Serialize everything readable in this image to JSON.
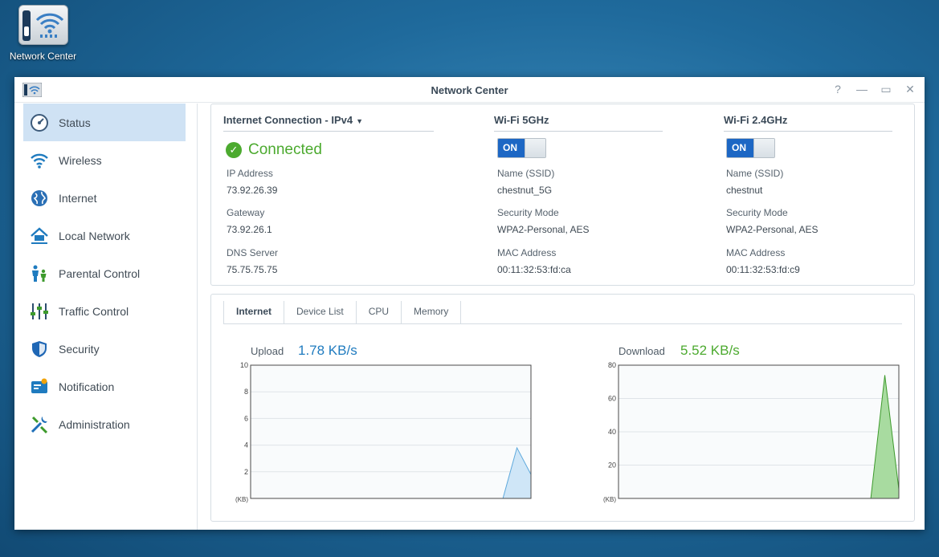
{
  "desktop": {
    "icon_label": "Network Center"
  },
  "window": {
    "title": "Network Center",
    "controls": {
      "help": "?",
      "minimize": "—",
      "maximize": "▭",
      "close": "✕"
    }
  },
  "sidebar": {
    "items": [
      {
        "label": "Status",
        "icon": "status-gauge-icon",
        "active": true
      },
      {
        "label": "Wireless",
        "icon": "wireless-icon"
      },
      {
        "label": "Internet",
        "icon": "globe-icon"
      },
      {
        "label": "Local Network",
        "icon": "home-network-icon"
      },
      {
        "label": "Parental Control",
        "icon": "family-icon"
      },
      {
        "label": "Traffic Control",
        "icon": "sliders-icon"
      },
      {
        "label": "Security",
        "icon": "shield-icon"
      },
      {
        "label": "Notification",
        "icon": "notification-icon"
      },
      {
        "label": "Administration",
        "icon": "tools-icon"
      }
    ]
  },
  "internet": {
    "heading": "Internet Connection - IPv4",
    "status": "Connected",
    "status_color": "#4caa2f",
    "ip_label": "IP Address",
    "ip": "73.92.26.39",
    "gateway_label": "Gateway",
    "gateway": "73.92.26.1",
    "dns_label": "DNS Server",
    "dns": "75.75.75.75"
  },
  "wifi5": {
    "heading": "Wi-Fi 5GHz",
    "toggle": "ON",
    "ssid_label": "Name (SSID)",
    "ssid": "chestnut_5G",
    "security_label": "Security Mode",
    "security": "WPA2-Personal, AES",
    "mac_label": "MAC Address",
    "mac": "00:11:32:53:fd:ca"
  },
  "wifi24": {
    "heading": "Wi-Fi 2.4GHz",
    "toggle": "ON",
    "ssid_label": "Name (SSID)",
    "ssid": "chestnut",
    "security_label": "Security Mode",
    "security": "WPA2-Personal, AES",
    "mac_label": "MAC Address",
    "mac": "00:11:32:53:fd:c9"
  },
  "tabs": [
    "Internet",
    "Device List",
    "CPU",
    "Memory"
  ],
  "upload": {
    "label": "Upload",
    "value": "1.78 KB/s",
    "color": "#1f7bbf"
  },
  "download": {
    "label": "Download",
    "value": "5.52 KB/s",
    "color": "#4caa2f"
  },
  "chart_data": [
    {
      "type": "area",
      "name": "Upload",
      "ylabel": "(KB)",
      "ylim": [
        0,
        10
      ],
      "yticks": [
        2,
        4,
        6,
        8,
        10
      ],
      "values": [
        0,
        0,
        0,
        0,
        0,
        0,
        0,
        0,
        0,
        0,
        0,
        0,
        0,
        0,
        0,
        0,
        0,
        0,
        0,
        3.8,
        1.8
      ],
      "stroke": "#5ea9dc",
      "fill": "#cfe6f7"
    },
    {
      "type": "area",
      "name": "Download",
      "ylabel": "(KB)",
      "ylim": [
        0,
        80
      ],
      "yticks": [
        20,
        40,
        60,
        80
      ],
      "values": [
        0,
        0,
        0,
        0,
        0,
        0,
        0,
        0,
        0,
        0,
        0,
        0,
        0,
        0,
        0,
        0,
        0,
        0,
        0,
        74,
        5.5
      ],
      "stroke": "#3d9a2c",
      "fill": "#a8dba0"
    }
  ]
}
